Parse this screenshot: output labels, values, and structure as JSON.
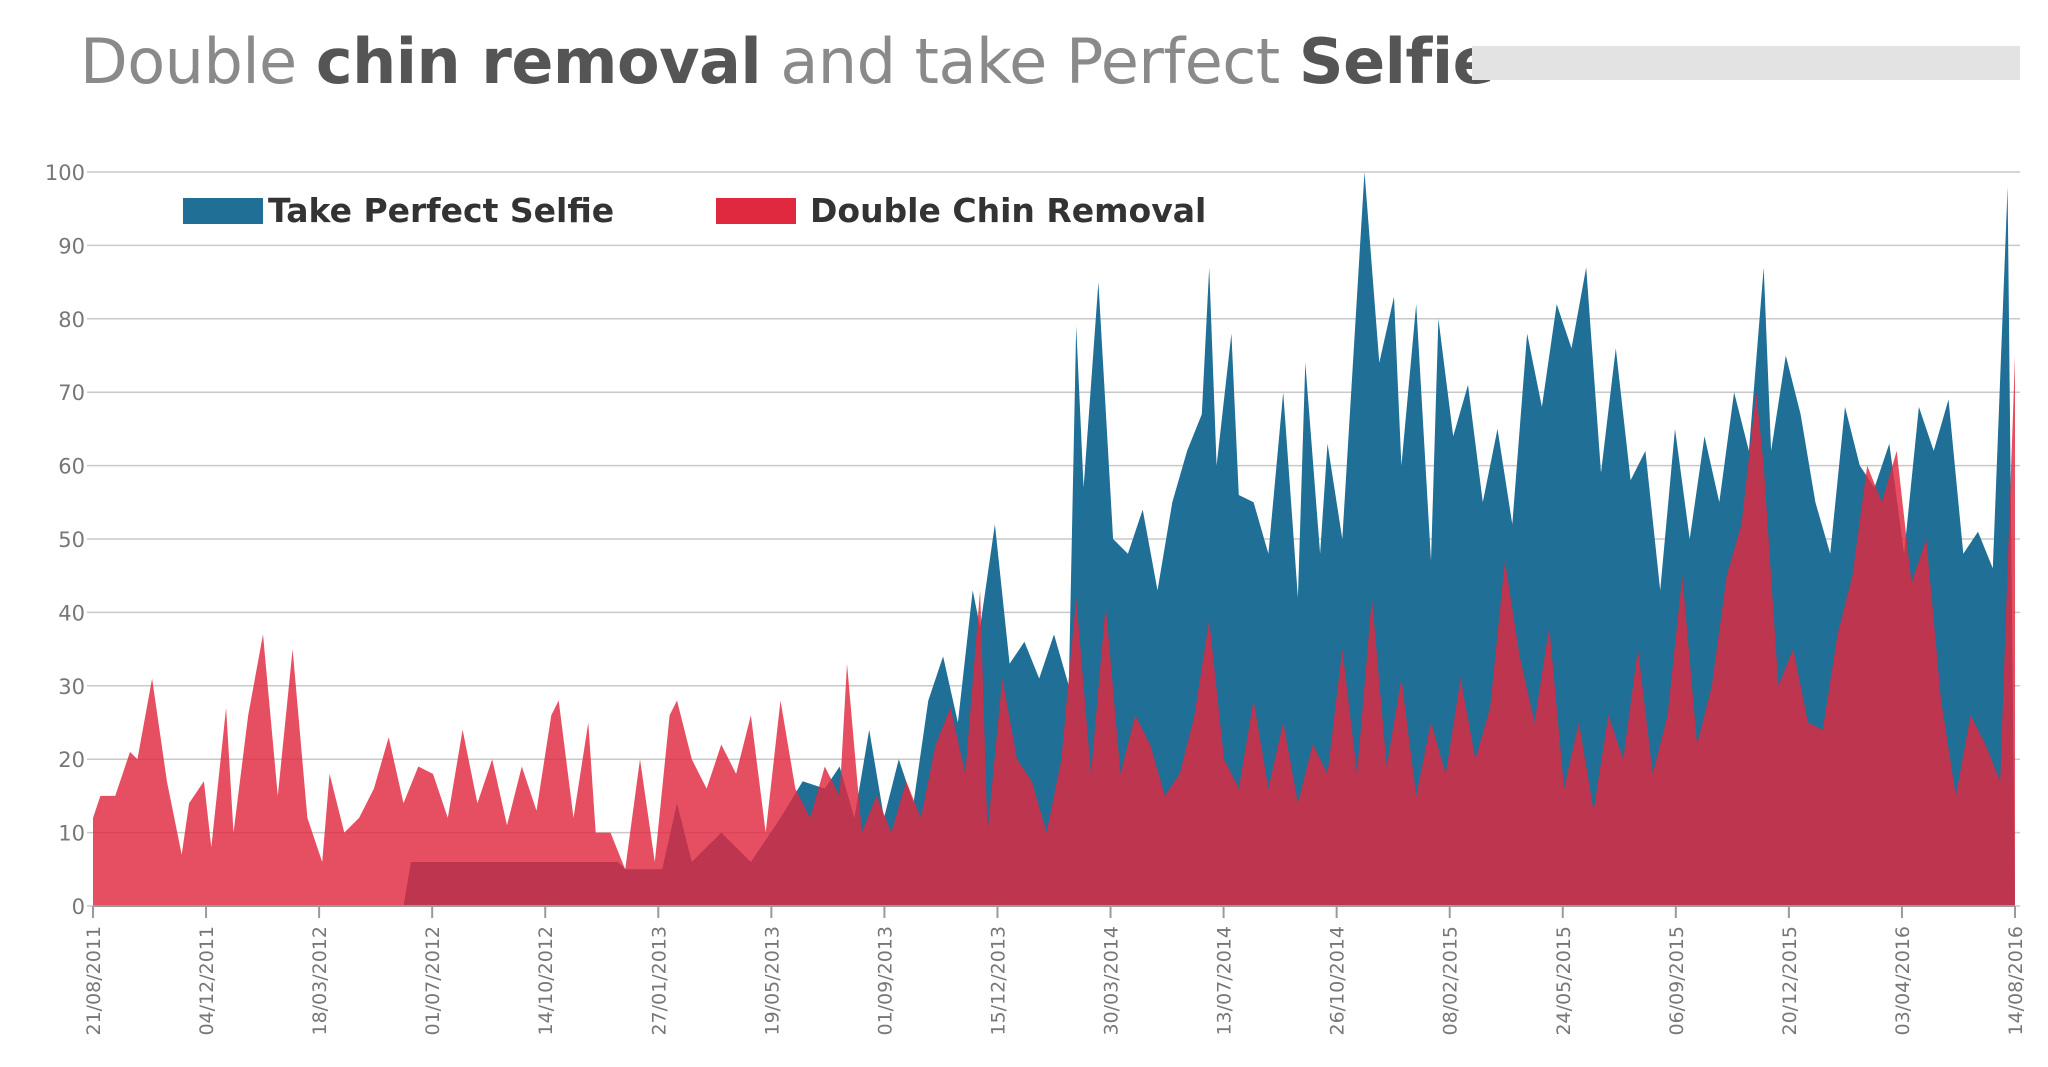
{
  "title": {
    "part1": "Double ",
    "part2": "chin removal",
    "part3": " and take Perfect ",
    "part4": "Selfie"
  },
  "chart_data": {
    "type": "area",
    "title": "Double chin removal and take Perfect Selfie",
    "ylim": [
      0,
      100
    ],
    "y_ticks": [
      0,
      10,
      20,
      30,
      40,
      50,
      60,
      70,
      80,
      90,
      100
    ],
    "x_tick_labels": [
      "21/08/2011",
      "04/12/2011",
      "18/03/2012",
      "01/07/2012",
      "14/10/2012",
      "27/01/2013",
      "19/05/2013",
      "01/09/2013",
      "15/12/2013",
      "30/03/2014",
      "13/07/2014",
      "26/10/2014",
      "08/02/2015",
      "24/05/2015",
      "06/09/2015",
      "20/12/2015",
      "03/04/2016",
      "14/08/2016"
    ],
    "x_start": "2011-08-21",
    "x_end": "2016-08-14",
    "grid": true,
    "legend_position": "top-left",
    "series": [
      {
        "name": "Take Perfect Selfie",
        "color": "#1f6f96",
        "points": [
          [
            "2011-08-21",
            0
          ],
          [
            "2012-06-10",
            0
          ],
          [
            "2012-06-17",
            6
          ],
          [
            "2012-12-30",
            6
          ],
          [
            "2013-01-06",
            5
          ],
          [
            "2013-02-10",
            5
          ],
          [
            "2013-02-24",
            14
          ],
          [
            "2013-03-10",
            6
          ],
          [
            "2013-04-07",
            10
          ],
          [
            "2013-05-05",
            6
          ],
          [
            "2013-06-02",
            12
          ],
          [
            "2013-06-23",
            17
          ],
          [
            "2013-07-14",
            16
          ],
          [
            "2013-07-28",
            19
          ],
          [
            "2013-08-11",
            12
          ],
          [
            "2013-08-25",
            24
          ],
          [
            "2013-09-08",
            12
          ],
          [
            "2013-09-22",
            20
          ],
          [
            "2013-10-06",
            14
          ],
          [
            "2013-10-20",
            28
          ],
          [
            "2013-11-03",
            34
          ],
          [
            "2013-11-17",
            25
          ],
          [
            "2013-12-01",
            43
          ],
          [
            "2013-12-08",
            38
          ],
          [
            "2013-12-22",
            52
          ],
          [
            "2014-01-05",
            33
          ],
          [
            "2014-01-19",
            36
          ],
          [
            "2014-02-02",
            31
          ],
          [
            "2014-02-16",
            37
          ],
          [
            "2014-03-02",
            30
          ],
          [
            "2014-03-09",
            79
          ],
          [
            "2014-03-16",
            57
          ],
          [
            "2014-03-30",
            85
          ],
          [
            "2014-04-13",
            50
          ],
          [
            "2014-04-27",
            48
          ],
          [
            "2014-05-11",
            54
          ],
          [
            "2014-05-25",
            43
          ],
          [
            "2014-06-08",
            55
          ],
          [
            "2014-06-22",
            62
          ],
          [
            "2014-07-06",
            67
          ],
          [
            "2014-07-13",
            87
          ],
          [
            "2014-07-20",
            60
          ],
          [
            "2014-08-03",
            78
          ],
          [
            "2014-08-10",
            56
          ],
          [
            "2014-08-24",
            55
          ],
          [
            "2014-09-07",
            48
          ],
          [
            "2014-09-21",
            70
          ],
          [
            "2014-10-05",
            42
          ],
          [
            "2014-10-12",
            74
          ],
          [
            "2014-10-26",
            48
          ],
          [
            "2014-11-02",
            63
          ],
          [
            "2014-11-16",
            50
          ],
          [
            "2014-12-07",
            100
          ],
          [
            "2014-12-21",
            74
          ],
          [
            "2015-01-04",
            83
          ],
          [
            "2015-01-11",
            60
          ],
          [
            "2015-01-25",
            82
          ],
          [
            "2015-02-08",
            47
          ],
          [
            "2015-02-15",
            80
          ],
          [
            "2015-03-01",
            64
          ],
          [
            "2015-03-15",
            71
          ],
          [
            "2015-03-29",
            55
          ],
          [
            "2015-04-12",
            65
          ],
          [
            "2015-04-26",
            52
          ],
          [
            "2015-05-10",
            78
          ],
          [
            "2015-05-24",
            68
          ],
          [
            "2015-06-07",
            82
          ],
          [
            "2015-06-21",
            76
          ],
          [
            "2015-07-05",
            87
          ],
          [
            "2015-07-19",
            59
          ],
          [
            "2015-08-02",
            76
          ],
          [
            "2015-08-16",
            58
          ],
          [
            "2015-08-30",
            62
          ],
          [
            "2015-09-13",
            43
          ],
          [
            "2015-09-27",
            65
          ],
          [
            "2015-10-11",
            50
          ],
          [
            "2015-10-25",
            64
          ],
          [
            "2015-11-08",
            55
          ],
          [
            "2015-11-22",
            70
          ],
          [
            "2015-12-06",
            62
          ],
          [
            "2015-12-20",
            87
          ],
          [
            "2015-12-27",
            62
          ],
          [
            "2016-01-10",
            75
          ],
          [
            "2016-01-24",
            67
          ],
          [
            "2016-02-07",
            55
          ],
          [
            "2016-02-21",
            48
          ],
          [
            "2016-03-06",
            68
          ],
          [
            "2016-03-20",
            60
          ],
          [
            "2016-04-03",
            57
          ],
          [
            "2016-04-17",
            63
          ],
          [
            "2016-05-01",
            48
          ],
          [
            "2016-05-15",
            68
          ],
          [
            "2016-05-29",
            62
          ],
          [
            "2016-06-12",
            69
          ],
          [
            "2016-06-26",
            48
          ],
          [
            "2016-07-10",
            51
          ],
          [
            "2016-07-24",
            46
          ],
          [
            "2016-08-07",
            98
          ],
          [
            "2016-08-14",
            0
          ]
        ]
      },
      {
        "name": "Double Chin Removal",
        "color": "#e0283e",
        "points": [
          [
            "2011-08-21",
            12
          ],
          [
            "2011-08-28",
            15
          ],
          [
            "2011-09-11",
            15
          ],
          [
            "2011-09-25",
            21
          ],
          [
            "2011-10-02",
            20
          ],
          [
            "2011-10-16",
            31
          ],
          [
            "2011-10-30",
            17
          ],
          [
            "2011-11-13",
            7
          ],
          [
            "2011-11-20",
            14
          ],
          [
            "2011-12-04",
            17
          ],
          [
            "2011-12-11",
            8
          ],
          [
            "2011-12-25",
            27
          ],
          [
            "2012-01-01",
            10
          ],
          [
            "2012-01-15",
            26
          ],
          [
            "2012-01-29",
            37
          ],
          [
            "2012-02-12",
            15
          ],
          [
            "2012-02-26",
            35
          ],
          [
            "2012-03-11",
            12
          ],
          [
            "2012-03-25",
            6
          ],
          [
            "2012-04-01",
            18
          ],
          [
            "2012-04-15",
            10
          ],
          [
            "2012-04-29",
            12
          ],
          [
            "2012-05-13",
            16
          ],
          [
            "2012-05-27",
            23
          ],
          [
            "2012-06-10",
            14
          ],
          [
            "2012-06-24",
            19
          ],
          [
            "2012-07-08",
            18
          ],
          [
            "2012-07-22",
            12
          ],
          [
            "2012-08-05",
            24
          ],
          [
            "2012-08-19",
            14
          ],
          [
            "2012-09-02",
            20
          ],
          [
            "2012-09-16",
            11
          ],
          [
            "2012-09-30",
            19
          ],
          [
            "2012-10-14",
            13
          ],
          [
            "2012-10-28",
            26
          ],
          [
            "2012-11-04",
            28
          ],
          [
            "2012-11-18",
            12
          ],
          [
            "2012-12-02",
            25
          ],
          [
            "2012-12-09",
            10
          ],
          [
            "2012-12-23",
            10
          ],
          [
            "2013-01-06",
            5
          ],
          [
            "2013-01-20",
            20
          ],
          [
            "2013-02-03",
            6
          ],
          [
            "2013-02-17",
            26
          ],
          [
            "2013-02-24",
            28
          ],
          [
            "2013-03-10",
            20
          ],
          [
            "2013-03-24",
            16
          ],
          [
            "2013-04-07",
            22
          ],
          [
            "2013-04-21",
            18
          ],
          [
            "2013-05-05",
            26
          ],
          [
            "2013-05-19",
            10
          ],
          [
            "2013-06-02",
            28
          ],
          [
            "2013-06-16",
            16
          ],
          [
            "2013-06-30",
            12
          ],
          [
            "2013-07-14",
            19
          ],
          [
            "2013-07-28",
            15
          ],
          [
            "2013-08-04",
            33
          ],
          [
            "2013-08-18",
            10
          ],
          [
            "2013-09-01",
            15
          ],
          [
            "2013-09-15",
            10
          ],
          [
            "2013-09-29",
            17
          ],
          [
            "2013-10-13",
            12
          ],
          [
            "2013-10-27",
            22
          ],
          [
            "2013-11-10",
            27
          ],
          [
            "2013-11-24",
            18
          ],
          [
            "2013-12-08",
            43
          ],
          [
            "2013-12-15",
            10
          ],
          [
            "2013-12-29",
            31
          ],
          [
            "2014-01-12",
            20
          ],
          [
            "2014-01-26",
            17
          ],
          [
            "2014-02-09",
            10
          ],
          [
            "2014-02-23",
            20
          ],
          [
            "2014-03-09",
            42
          ],
          [
            "2014-03-23",
            18
          ],
          [
            "2014-04-06",
            41
          ],
          [
            "2014-04-20",
            18
          ],
          [
            "2014-05-04",
            26
          ],
          [
            "2014-05-18",
            22
          ],
          [
            "2014-06-01",
            15
          ],
          [
            "2014-06-15",
            18
          ],
          [
            "2014-06-29",
            26
          ],
          [
            "2014-07-13",
            39
          ],
          [
            "2014-07-27",
            20
          ],
          [
            "2014-08-10",
            16
          ],
          [
            "2014-08-24",
            28
          ],
          [
            "2014-09-07",
            16
          ],
          [
            "2014-09-21",
            25
          ],
          [
            "2014-10-05",
            14
          ],
          [
            "2014-10-19",
            22
          ],
          [
            "2014-11-02",
            18
          ],
          [
            "2014-11-16",
            35
          ],
          [
            "2014-11-30",
            18
          ],
          [
            "2014-12-14",
            42
          ],
          [
            "2014-12-28",
            19
          ],
          [
            "2015-01-11",
            31
          ],
          [
            "2015-01-25",
            15
          ],
          [
            "2015-02-08",
            25
          ],
          [
            "2015-02-22",
            18
          ],
          [
            "2015-03-08",
            31
          ],
          [
            "2015-03-22",
            20
          ],
          [
            "2015-04-05",
            27
          ],
          [
            "2015-04-19",
            47
          ],
          [
            "2015-05-03",
            34
          ],
          [
            "2015-05-17",
            25
          ],
          [
            "2015-05-31",
            38
          ],
          [
            "2015-06-14",
            16
          ],
          [
            "2015-06-28",
            25
          ],
          [
            "2015-07-12",
            13
          ],
          [
            "2015-07-26",
            26
          ],
          [
            "2015-08-09",
            20
          ],
          [
            "2015-08-23",
            35
          ],
          [
            "2015-09-06",
            18
          ],
          [
            "2015-09-20",
            26
          ],
          [
            "2015-10-04",
            45
          ],
          [
            "2015-10-18",
            22
          ],
          [
            "2015-11-01",
            30
          ],
          [
            "2015-11-15",
            45
          ],
          [
            "2015-11-29",
            52
          ],
          [
            "2015-12-13",
            70
          ],
          [
            "2015-12-20",
            60
          ],
          [
            "2016-01-03",
            30
          ],
          [
            "2016-01-17",
            35
          ],
          [
            "2016-01-31",
            25
          ],
          [
            "2016-02-14",
            24
          ],
          [
            "2016-02-28",
            37
          ],
          [
            "2016-03-13",
            45
          ],
          [
            "2016-03-27",
            60
          ],
          [
            "2016-04-10",
            55
          ],
          [
            "2016-04-24",
            62
          ],
          [
            "2016-05-08",
            44
          ],
          [
            "2016-05-22",
            50
          ],
          [
            "2016-06-05",
            28
          ],
          [
            "2016-06-19",
            15
          ],
          [
            "2016-07-03",
            26
          ],
          [
            "2016-07-17",
            22
          ],
          [
            "2016-07-31",
            17
          ],
          [
            "2016-08-14",
            75
          ],
          [
            "2016-08-14",
            0
          ]
        ]
      }
    ]
  }
}
